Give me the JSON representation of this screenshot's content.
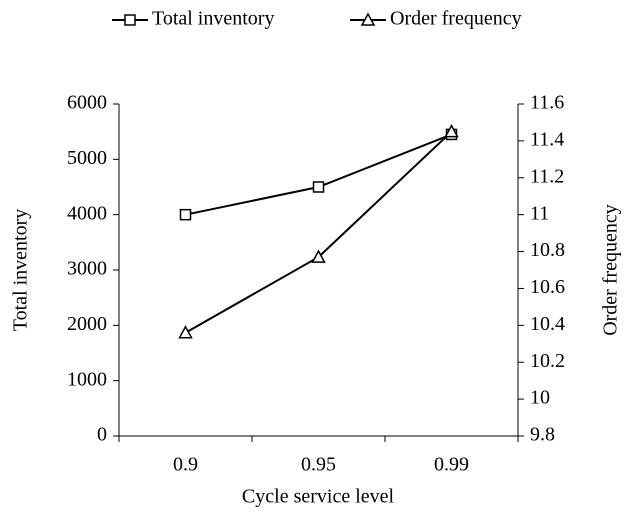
{
  "chart_data": {
    "type": "line",
    "x_label": "Cycle service level",
    "y_label": "Total inventory",
    "y2_label": "Order frequency",
    "categories": [
      "0.9",
      "0.95",
      "0.99"
    ],
    "series": [
      {
        "name": "Total inventory",
        "color": "#000000",
        "marker": "square",
        "values": [
          4000,
          4500,
          5450
        ]
      },
      {
        "name": "Order frequency",
        "color": "#000000",
        "marker": "triangle",
        "axis": "y2",
        "values": [
          10.36,
          10.77,
          11.45
        ]
      }
    ],
    "ylim": [
      0,
      6000
    ],
    "yticks": [
      0,
      1000,
      2000,
      3000,
      4000,
      5000,
      6000
    ],
    "y2lim": [
      9.8,
      11.6
    ],
    "y2ticks": [
      9.8,
      10,
      10.2,
      10.4,
      10.6,
      10.8,
      11,
      11.2,
      11.4,
      11.6
    ],
    "legend": "top"
  }
}
